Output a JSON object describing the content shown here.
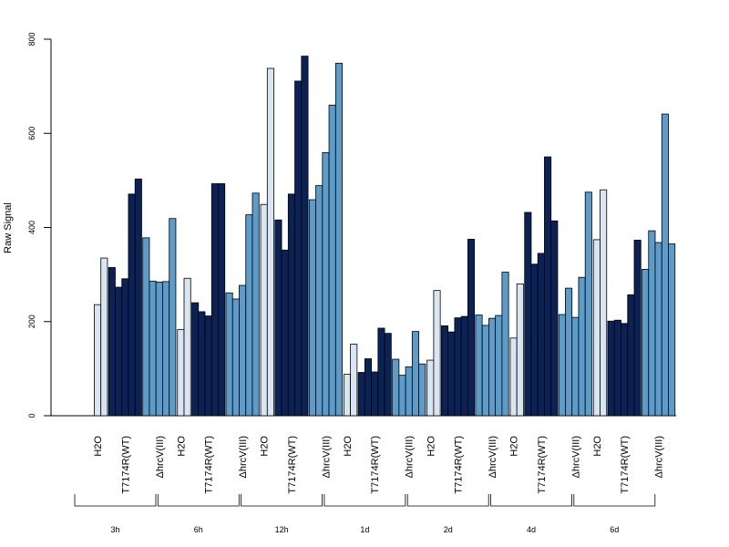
{
  "chart_data": {
    "type": "bar",
    "ylabel": "Raw Signal",
    "ylim": [
      0,
      800
    ],
    "yticks": [
      0,
      200,
      400,
      600,
      800
    ],
    "subgroup_labels": [
      "H2O",
      "T7174R(WT)",
      "ΔhrcV(III)"
    ],
    "subgroup_colors": [
      "#d9e6f2",
      "#0b2257",
      "#5b9ccb"
    ],
    "groups": [
      {
        "label": "3h",
        "subgroups": [
          {
            "name": "H2O",
            "values": [
              0,
              236,
              335
            ]
          },
          {
            "name": "T7174R(WT)",
            "values": [
              315,
              273,
              291,
              471,
              503
            ]
          },
          {
            "name": "ΔhrcV(III)",
            "values": [
              378,
              286,
              284,
              285,
              419
            ]
          }
        ]
      },
      {
        "label": "6h",
        "subgroups": [
          {
            "name": "H2O",
            "values": [
              0,
              183,
              292
            ]
          },
          {
            "name": "T7174R(WT)",
            "values": [
              240,
              221,
              212,
              493,
              493
            ]
          },
          {
            "name": "ΔhrcV(III)",
            "values": [
              261,
              248,
              277,
              427,
              473
            ]
          }
        ]
      },
      {
        "label": "12h",
        "subgroups": [
          {
            "name": "H2O",
            "values": [
              0,
              449,
              738
            ]
          },
          {
            "name": "T7174R(WT)",
            "values": [
              416,
              352,
              471,
              711,
              764
            ]
          },
          {
            "name": "ΔhrcV(III)",
            "values": [
              459,
              489,
              559,
              660,
              749
            ]
          }
        ]
      },
      {
        "label": "1d",
        "subgroups": [
          {
            "name": "H2O",
            "values": [
              0,
              88,
              152
            ]
          },
          {
            "name": "T7174R(WT)",
            "values": [
              92,
              121,
              93,
              186,
              175
            ]
          },
          {
            "name": "ΔhrcV(III)",
            "values": [
              120,
              86,
              104,
              179,
              110
            ]
          }
        ]
      },
      {
        "label": "2d",
        "subgroups": [
          {
            "name": "H2O",
            "values": [
              0,
              118,
              266
            ]
          },
          {
            "name": "T7174R(WT)",
            "values": [
              191,
              178,
              208,
              211,
              375
            ]
          },
          {
            "name": "ΔhrcV(III)",
            "values": [
              214,
              192,
              207,
              213,
              305
            ]
          }
        ]
      },
      {
        "label": "4d",
        "subgroups": [
          {
            "name": "H2O",
            "values": [
              0,
              165,
              280
            ]
          },
          {
            "name": "T7174R(WT)",
            "values": [
              432,
              322,
              345,
              550,
              414
            ]
          },
          {
            "name": "ΔhrcV(III)",
            "values": [
              215,
              271,
              209,
              294,
              475
            ]
          }
        ]
      },
      {
        "label": "6d",
        "subgroups": [
          {
            "name": "H2O",
            "values": [
              0,
              374,
              480
            ]
          },
          {
            "name": "T7174R(WT)",
            "values": [
              201,
              203,
              196,
              257,
              373
            ]
          },
          {
            "name": "ΔhrcV(III)",
            "values": [
              311,
              393,
              368,
              641,
              365
            ]
          }
        ]
      }
    ]
  }
}
